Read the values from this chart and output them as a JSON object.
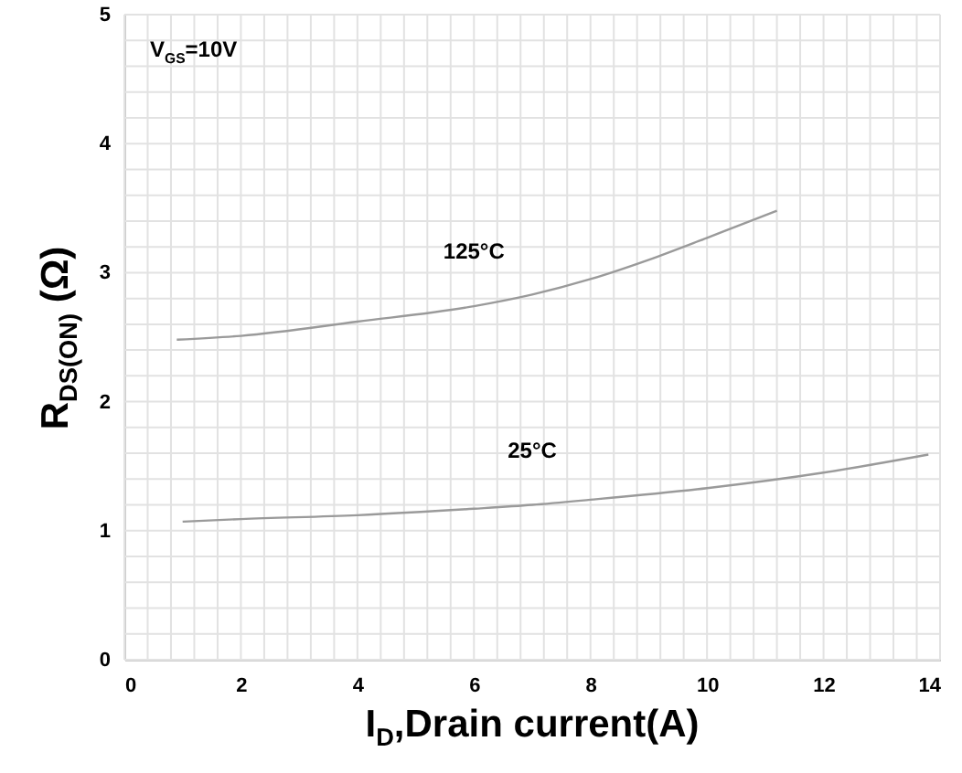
{
  "chart_data": {
    "type": "line",
    "xlabel": "I$_{D}$,Drain current(A)",
    "ylabel": "R$_{DS(ON)}$ (Ω)",
    "annotations": [
      "V$_{GS}$=10V"
    ],
    "series": [
      {
        "name": "125°C",
        "color": "#9a9a9a",
        "x": [
          0.9,
          2,
          4,
          6,
          7,
          8,
          9,
          10,
          11.2
        ],
        "values": [
          2.48,
          2.51,
          2.62,
          2.74,
          2.83,
          2.95,
          3.1,
          3.27,
          3.48
        ]
      },
      {
        "name": "25°C",
        "color": "#9a9a9a",
        "x": [
          1,
          2,
          4,
          6,
          7,
          8,
          10,
          12,
          13.8
        ],
        "values": [
          1.07,
          1.09,
          1.12,
          1.17,
          1.2,
          1.24,
          1.33,
          1.45,
          1.59
        ]
      }
    ],
    "xlim": [
      0,
      14
    ],
    "xticks": [
      0,
      {
        "value": 0.4,
        "label": null
      },
      {
        "value": 0.8,
        "label": null
      },
      {
        "value": 1.2,
        "label": null
      },
      {
        "value": 1.6,
        "label": null
      },
      2,
      {
        "value": 2.4,
        "label": null
      },
      {
        "value": 2.8,
        "label": null
      },
      {
        "value": 3.2,
        "label": null
      },
      {
        "value": 3.6,
        "label": null
      },
      4,
      {
        "value": 4.4,
        "label": null
      },
      {
        "value": 4.8,
        "label": null
      },
      {
        "value": 5.2,
        "label": null
      },
      {
        "value": 5.6,
        "label": null
      },
      6,
      {
        "value": 6.4,
        "label": null
      },
      {
        "value": 6.8,
        "label": null
      },
      {
        "value": 7.2,
        "label": null
      },
      {
        "value": 7.6,
        "label": null
      },
      8,
      {
        "value": 8.4,
        "label": null
      },
      {
        "value": 8.8,
        "label": null
      },
      {
        "value": 9.2,
        "label": null
      },
      {
        "value": 9.6,
        "label": null
      },
      10,
      {
        "value": 10.4,
        "label": null
      },
      {
        "value": 10.8,
        "label": null
      },
      {
        "value": 11.2,
        "label": null
      },
      {
        "value": 11.6,
        "label": null
      },
      12,
      {
        "value": 12.4,
        "label": null
      },
      {
        "value": 12.8,
        "label": null
      },
      {
        "value": 13.2,
        "label": null
      },
      {
        "value": 13.6,
        "label": null
      },
      14
    ],
    "ylim": [
      0,
      5
    ],
    "yticks": [
      0,
      {
        "value": 0.2,
        "label": null
      },
      {
        "value": 0.4,
        "label": null
      },
      {
        "value": 0.6,
        "label": null
      },
      {
        "value": 0.8,
        "label": null
      },
      1,
      {
        "value": 1.2,
        "label": null
      },
      {
        "value": 1.4,
        "label": null
      },
      {
        "value": 1.6,
        "label": null
      },
      {
        "value": 1.8,
        "label": null
      },
      2,
      {
        "value": 2.2,
        "label": null
      },
      {
        "value": 2.4,
        "label": null
      },
      {
        "value": 2.6,
        "label": null
      },
      {
        "value": 2.8,
        "label": null
      },
      3,
      {
        "value": 3.2,
        "label": null
      },
      {
        "value": 3.4,
        "label": null
      },
      {
        "value": 3.6,
        "label": null
      },
      {
        "value": 3.8,
        "label": null
      },
      4,
      {
        "value": 4.2,
        "label": null
      },
      {
        "value": 4.4,
        "label": null
      },
      {
        "value": 4.6,
        "label": null
      },
      {
        "value": 4.8,
        "label": null
      },
      5
    ],
    "grid": true,
    "marker": "none",
    "line_style": "solid"
  }
}
